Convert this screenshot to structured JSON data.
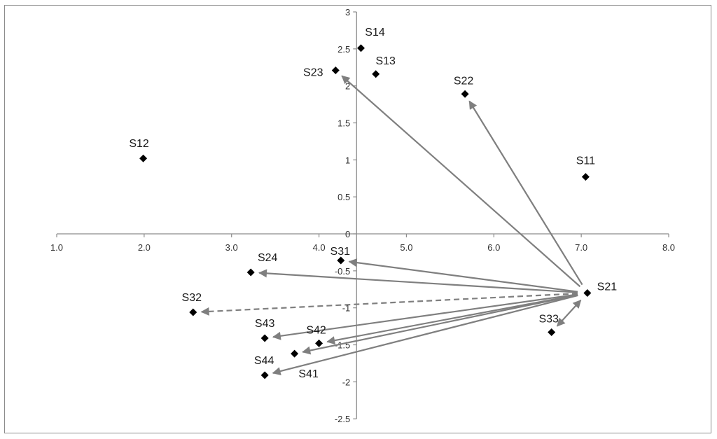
{
  "chart_data": {
    "type": "scatter",
    "title": "",
    "xlabel": "",
    "ylabel": "",
    "xlim": [
      1.0,
      8.0
    ],
    "ylim": [
      -2.5,
      3.0
    ],
    "x_ticks": [
      "1.0",
      "2.0",
      "3.0",
      "4.0",
      "5.0",
      "6.0",
      "7.0",
      "8.0"
    ],
    "y_ticks": [
      "3",
      "2.5",
      "2",
      "1.5",
      "1",
      "0.5",
      "0",
      "-0.5",
      "-1",
      "-1.5",
      "-2",
      "-2.5"
    ],
    "grid": false,
    "legend": "none",
    "marker_color": "#000000",
    "arrow_color": "#7f7f7f",
    "points": [
      {
        "label": "S11",
        "x": 7.05,
        "y": 0.77
      },
      {
        "label": "S12",
        "x": 1.99,
        "y": 1.02
      },
      {
        "label": "S13",
        "x": 4.65,
        "y": 2.16
      },
      {
        "label": "S14",
        "x": 4.48,
        "y": 2.51
      },
      {
        "label": "S21",
        "x": 7.07,
        "y": -0.8
      },
      {
        "label": "S22",
        "x": 5.67,
        "y": 1.89
      },
      {
        "label": "S23",
        "x": 4.19,
        "y": 2.21
      },
      {
        "label": "S24",
        "x": 3.22,
        "y": -0.52
      },
      {
        "label": "S31",
        "x": 4.25,
        "y": -0.36
      },
      {
        "label": "S32",
        "x": 2.56,
        "y": -1.06
      },
      {
        "label": "S33",
        "x": 6.66,
        "y": -1.33
      },
      {
        "label": "S41",
        "x": 3.72,
        "y": -1.62
      },
      {
        "label": "S42",
        "x": 4.0,
        "y": -1.48
      },
      {
        "label": "S43",
        "x": 3.38,
        "y": -1.41
      },
      {
        "label": "S44",
        "x": 3.38,
        "y": -1.91
      }
    ],
    "arrows": [
      {
        "from": "S21",
        "to": "S22",
        "style": "solid"
      },
      {
        "from": "S21",
        "to": "S23",
        "style": "solid"
      },
      {
        "from": "S21",
        "to": "S31",
        "style": "solid"
      },
      {
        "from": "S21",
        "to": "S24",
        "style": "solid"
      },
      {
        "from": "S21",
        "to": "S32",
        "style": "dashed"
      },
      {
        "from": "S21",
        "to": "S43",
        "style": "solid"
      },
      {
        "from": "S21",
        "to": "S42",
        "style": "solid"
      },
      {
        "from": "S21",
        "to": "S41",
        "style": "solid"
      },
      {
        "from": "S21",
        "to": "S44",
        "style": "solid"
      },
      {
        "from": "S21",
        "to": "S33",
        "style": "solid"
      }
    ]
  }
}
